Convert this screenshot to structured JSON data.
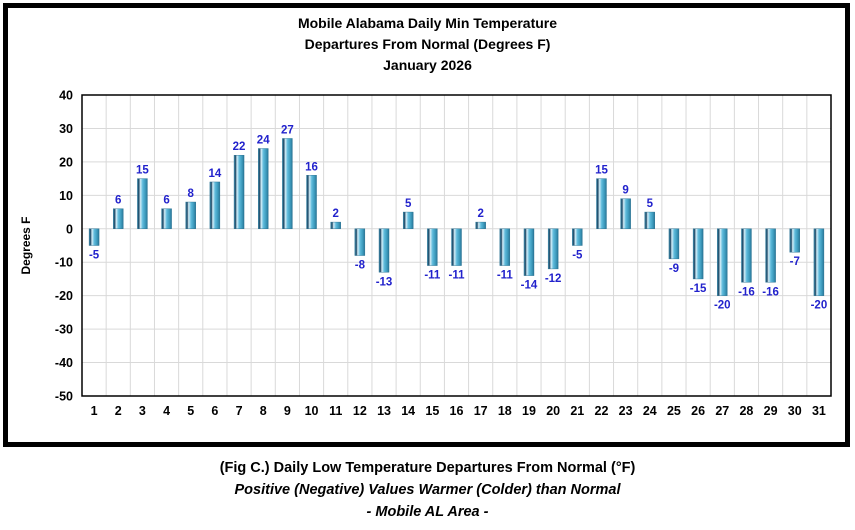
{
  "chart": {
    "title_lines": [
      "Mobile Alabama Daily Min Temperature",
      "Departures From Normal (Degrees F)",
      "January 2026"
    ],
    "caption_lines": [
      "(Fig C.) Daily Low Temperature Departures From Normal (°F)",
      "Positive (Negative) Values Warmer (Colder) than Normal",
      "- Mobile AL Area -"
    ]
  },
  "chart_data": {
    "type": "bar",
    "title": "Mobile Alabama Daily Min Temperature Departures From Normal (Degrees F) January 2026",
    "categories": [
      1,
      2,
      3,
      4,
      5,
      6,
      7,
      8,
      9,
      10,
      11,
      12,
      13,
      14,
      15,
      16,
      17,
      18,
      19,
      20,
      21,
      22,
      23,
      24,
      25,
      26,
      27,
      28,
      29,
      30,
      31
    ],
    "values": [
      -5,
      6,
      15,
      6,
      8,
      14,
      22,
      24,
      27,
      16,
      2,
      -8,
      -13,
      5,
      -11,
      -11,
      2,
      -11,
      -14,
      -12,
      -5,
      15,
      9,
      5,
      -9,
      -15,
      -20,
      -16,
      -16,
      -7,
      -20
    ],
    "xlabel": "",
    "ylabel": "Degrees F",
    "ylim": [
      -50,
      40
    ],
    "ytick_step": 10,
    "grid": true,
    "legend": false,
    "colors": {
      "bar_main": "#4BACC6",
      "bar_gradient_stops": [
        [
          "0%",
          "#4E9FC0"
        ],
        [
          "13%",
          "#16405E"
        ],
        [
          "30%",
          "#D4EEF8"
        ],
        [
          "52%",
          "#5FBBDC"
        ],
        [
          "78%",
          "#3E9CBE"
        ],
        [
          "100%",
          "#2A7697"
        ]
      ],
      "value_label": "#2222CC",
      "gridline": "#D9D9D9",
      "plot_border": "#000000",
      "axis_text": "#000000"
    }
  }
}
